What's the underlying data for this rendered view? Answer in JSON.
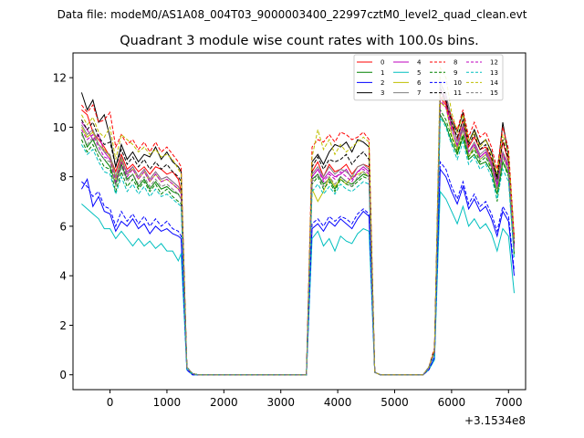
{
  "figure_header": "Data file: modeM0/AS1A08_004T03_9000003400_22997cztM0_level2_quad_clean.evt",
  "chart_data": {
    "type": "line",
    "title": "Quadrant 3 module wise count rates with 100.0s bins.",
    "xlabel": "",
    "ylabel": "",
    "x_offset_label": "+3.1534e8",
    "xlim": [
      -650,
      7300
    ],
    "ylim": [
      -0.6,
      13.0
    ],
    "x_ticks": [
      0,
      1000,
      2000,
      3000,
      4000,
      5000,
      6000,
      7000
    ],
    "y_ticks": [
      0,
      2,
      4,
      6,
      8,
      10,
      12
    ],
    "grid": false,
    "legend_placement": "top-right",
    "legend_columns": 4,
    "x": [
      -500,
      -400,
      -300,
      -200,
      -100,
      0,
      100,
      200,
      300,
      400,
      500,
      600,
      700,
      800,
      900,
      1000,
      1100,
      1200,
      1250,
      1350,
      1450,
      1550,
      2000,
      2500,
      3000,
      3450,
      3550,
      3650,
      3750,
      3850,
      3950,
      4050,
      4150,
      4250,
      4350,
      4450,
      4550,
      4650,
      4750,
      4850,
      5000,
      5500,
      5600,
      5700,
      5800,
      5900,
      6000,
      6100,
      6200,
      6300,
      6400,
      6500,
      6600,
      6700,
      6800,
      6900,
      7000,
      7100
    ],
    "series": [
      {
        "name": "0",
        "color": "#ff0000",
        "dash": "solid",
        "values": [
          10.7,
          10.5,
          9.8,
          9.5,
          9.2,
          8.8,
          8.2,
          8.9,
          8.3,
          8.5,
          8.2,
          8.4,
          8.1,
          8.4,
          8.3,
          8.1,
          8.2,
          7.9,
          7.4,
          0.3,
          0.05,
          0.0,
          0.0,
          0.0,
          0.0,
          0.0,
          8.2,
          8.6,
          8.0,
          8.5,
          8.2,
          8.3,
          8.5,
          8.1,
          8.4,
          8.5,
          8.4,
          0.1,
          0.0,
          0.0,
          0.0,
          0.0,
          0.3,
          1.0,
          11.2,
          10.9,
          10.1,
          9.5,
          10.3,
          9.2,
          9.6,
          9.1,
          9.2,
          8.7,
          7.9,
          9.4,
          8.6,
          5.2
        ]
      },
      {
        "name": "1",
        "color": "#008000",
        "dash": "solid",
        "values": [
          9.8,
          9.2,
          9.5,
          9.0,
          8.7,
          8.4,
          7.7,
          8.5,
          7.9,
          8.1,
          7.6,
          7.9,
          7.5,
          7.8,
          7.5,
          7.6,
          7.4,
          7.3,
          7.1,
          0.3,
          0.05,
          0.0,
          0.0,
          0.0,
          0.0,
          0.0,
          7.9,
          8.1,
          7.7,
          7.9,
          7.5,
          8.0,
          7.8,
          7.7,
          7.9,
          8.1,
          8.0,
          0.1,
          0.0,
          0.0,
          0.0,
          0.0,
          0.3,
          0.9,
          10.5,
          10.1,
          9.4,
          8.9,
          9.6,
          8.7,
          8.9,
          8.5,
          8.6,
          8.2,
          7.3,
          8.6,
          8.1,
          4.9
        ]
      },
      {
        "name": "2",
        "color": "#0000ff",
        "dash": "solid",
        "values": [
          7.5,
          7.9,
          6.8,
          7.2,
          6.6,
          6.5,
          5.8,
          6.2,
          6.0,
          6.3,
          5.9,
          6.1,
          5.7,
          6.0,
          5.8,
          5.9,
          5.7,
          5.6,
          5.5,
          0.2,
          0.0,
          0.0,
          0.0,
          0.0,
          0.0,
          0.0,
          5.9,
          6.1,
          5.8,
          6.2,
          6.0,
          6.3,
          6.1,
          5.9,
          6.3,
          6.6,
          6.4,
          0.1,
          0.0,
          0.0,
          0.0,
          0.0,
          0.2,
          0.7,
          8.3,
          8.0,
          7.4,
          6.9,
          7.6,
          6.7,
          7.1,
          6.6,
          6.8,
          6.3,
          5.6,
          6.6,
          6.2,
          4.0
        ]
      },
      {
        "name": "3",
        "color": "#000000",
        "dash": "solid",
        "values": [
          11.4,
          10.7,
          11.1,
          10.2,
          10.5,
          9.6,
          8.4,
          9.3,
          8.7,
          9.0,
          8.6,
          8.9,
          8.8,
          9.2,
          8.7,
          9.0,
          8.6,
          8.4,
          8.2,
          0.3,
          0.05,
          0.0,
          0.0,
          0.0,
          0.0,
          0.0,
          8.6,
          8.9,
          8.5,
          9.0,
          9.3,
          9.2,
          9.4,
          9.0,
          9.5,
          9.4,
          9.2,
          0.1,
          0.0,
          0.0,
          0.0,
          0.0,
          0.3,
          1.0,
          11.6,
          11.0,
          10.3,
          9.8,
          10.6,
          9.4,
          9.9,
          9.3,
          9.5,
          9.0,
          8.0,
          10.2,
          8.8,
          5.5
        ]
      },
      {
        "name": "4",
        "color": "#bf00bf",
        "dash": "solid",
        "values": [
          10.2,
          9.9,
          9.5,
          9.7,
          9.0,
          8.7,
          8.0,
          8.6,
          8.2,
          8.4,
          8.0,
          8.3,
          7.9,
          8.2,
          7.9,
          8.0,
          7.8,
          7.6,
          7.4,
          0.3,
          0.05,
          0.0,
          0.0,
          0.0,
          0.0,
          0.0,
          8.0,
          8.3,
          7.9,
          8.2,
          8.0,
          8.1,
          8.3,
          7.9,
          8.2,
          8.4,
          8.2,
          0.1,
          0.0,
          0.0,
          0.0,
          0.0,
          0.3,
          0.9,
          11.5,
          11.2,
          10.0,
          9.2,
          10.0,
          9.0,
          9.3,
          8.8,
          9.0,
          8.5,
          7.7,
          9.0,
          8.4,
          5.1
        ]
      },
      {
        "name": "5",
        "color": "#00bfbf",
        "dash": "solid",
        "values": [
          6.9,
          6.7,
          6.5,
          6.3,
          5.9,
          5.9,
          5.5,
          5.8,
          5.5,
          5.2,
          5.5,
          5.2,
          5.4,
          5.1,
          5.3,
          5.0,
          5.0,
          4.6,
          4.9,
          0.2,
          0.0,
          0.0,
          0.0,
          0.0,
          0.0,
          0.0,
          5.5,
          5.8,
          5.2,
          5.5,
          5.0,
          5.6,
          5.4,
          5.3,
          5.7,
          5.9,
          5.8,
          0.1,
          0.0,
          0.0,
          0.0,
          0.0,
          0.2,
          0.6,
          7.4,
          7.1,
          6.6,
          6.1,
          6.8,
          6.0,
          6.3,
          5.9,
          6.1,
          5.7,
          5.0,
          5.9,
          5.6,
          3.3
        ]
      },
      {
        "name": "6",
        "color": "#bfbf00",
        "dash": "solid",
        "values": [
          10.0,
          9.6,
          9.8,
          9.3,
          9.1,
          8.8,
          7.9,
          8.7,
          8.1,
          8.3,
          7.9,
          8.2,
          7.8,
          8.1,
          7.8,
          7.9,
          7.7,
          7.5,
          7.3,
          0.3,
          0.05,
          0.0,
          0.0,
          0.0,
          0.0,
          0.0,
          7.5,
          7.0,
          7.4,
          8.0,
          7.6,
          7.9,
          7.7,
          8.0,
          8.1,
          8.2,
          8.0,
          0.1,
          0.0,
          0.0,
          0.0,
          0.0,
          0.3,
          0.9,
          11.0,
          10.8,
          9.7,
          9.1,
          9.9,
          8.8,
          9.2,
          8.7,
          8.9,
          8.4,
          7.5,
          8.9,
          8.2,
          5.0
        ]
      },
      {
        "name": "7",
        "color": "#7f7f7f",
        "dash": "solid",
        "values": [
          10.1,
          9.7,
          9.9,
          9.3,
          9.0,
          8.9,
          8.0,
          8.8,
          8.1,
          8.4,
          8.0,
          8.3,
          7.9,
          8.2,
          7.9,
          8.0,
          7.8,
          7.6,
          7.4,
          0.3,
          0.05,
          0.0,
          0.0,
          0.0,
          0.0,
          0.0,
          8.1,
          8.4,
          8.0,
          8.4,
          8.1,
          8.3,
          8.2,
          8.0,
          8.4,
          8.5,
          8.3,
          0.1,
          0.0,
          0.0,
          0.0,
          0.0,
          0.3,
          0.9,
          11.8,
          11.3,
          10.4,
          9.4,
          10.1,
          9.0,
          9.4,
          8.9,
          9.1,
          8.6,
          7.8,
          9.0,
          8.5,
          5.1
        ]
      },
      {
        "name": "8",
        "color": "#ff0000",
        "dash": "dashed",
        "values": [
          10.9,
          10.6,
          10.9,
          10.2,
          10.3,
          10.6,
          9.2,
          9.7,
          9.3,
          9.5,
          9.1,
          9.4,
          9.0,
          9.4,
          9.0,
          9.2,
          8.9,
          8.6,
          8.4,
          0.3,
          0.05,
          0.0,
          0.0,
          0.0,
          0.0,
          0.0,
          9.2,
          9.5,
          9.4,
          9.7,
          9.4,
          9.8,
          9.7,
          9.5,
          9.6,
          9.8,
          9.5,
          0.1,
          0.0,
          0.0,
          0.0,
          0.0,
          0.3,
          1.1,
          11.3,
          11.0,
          10.4,
          9.9,
          10.7,
          9.6,
          10.2,
          9.6,
          9.8,
          9.2,
          8.3,
          10.0,
          9.1,
          5.6
        ]
      },
      {
        "name": "9",
        "color": "#008000",
        "dash": "dashed",
        "values": [
          9.5,
          9.0,
          9.3,
          8.8,
          8.4,
          8.3,
          7.4,
          8.2,
          7.6,
          7.9,
          7.5,
          7.8,
          7.4,
          7.7,
          7.3,
          7.5,
          7.2,
          7.0,
          6.9,
          0.3,
          0.05,
          0.0,
          0.0,
          0.0,
          0.0,
          0.0,
          7.7,
          8.0,
          7.5,
          7.8,
          7.4,
          7.9,
          7.7,
          7.6,
          7.8,
          8.0,
          7.9,
          0.1,
          0.0,
          0.0,
          0.0,
          0.0,
          0.3,
          0.9,
          10.7,
          10.3,
          9.6,
          9.0,
          9.7,
          8.8,
          9.1,
          8.6,
          8.8,
          8.3,
          7.0,
          8.6,
          8.0,
          4.8
        ]
      },
      {
        "name": "10",
        "color": "#0000ff",
        "dash": "dashed",
        "values": [
          7.8,
          7.6,
          7.2,
          7.4,
          6.8,
          6.7,
          6.0,
          6.6,
          6.2,
          6.5,
          6.1,
          6.4,
          6.0,
          6.3,
          6.0,
          6.2,
          5.9,
          5.8,
          5.6,
          0.2,
          0.0,
          0.0,
          0.0,
          0.0,
          0.0,
          0.0,
          6.1,
          6.3,
          6.0,
          6.4,
          6.2,
          6.4,
          6.3,
          6.1,
          6.5,
          6.7,
          6.5,
          0.1,
          0.0,
          0.0,
          0.0,
          0.0,
          0.2,
          0.7,
          8.6,
          8.3,
          7.6,
          7.1,
          7.8,
          6.9,
          7.3,
          6.8,
          7.0,
          6.5,
          5.8,
          6.8,
          6.4,
          4.2
        ]
      },
      {
        "name": "11",
        "color": "#000000",
        "dash": "dashed",
        "values": [
          10.3,
          9.9,
          10.2,
          9.6,
          9.3,
          9.4,
          8.4,
          9.1,
          8.5,
          8.8,
          8.4,
          8.7,
          8.3,
          8.6,
          8.3,
          8.5,
          8.2,
          8.0,
          7.8,
          0.3,
          0.05,
          0.0,
          0.0,
          0.0,
          0.0,
          0.0,
          8.4,
          8.8,
          8.3,
          8.7,
          8.6,
          8.7,
          8.9,
          8.5,
          8.8,
          9.0,
          8.7,
          0.1,
          0.0,
          0.0,
          0.0,
          0.0,
          0.3,
          1.0,
          11.4,
          11.1,
          10.2,
          9.6,
          10.3,
          9.3,
          9.7,
          9.1,
          9.3,
          8.8,
          7.9,
          9.5,
          8.7,
          5.3
        ]
      },
      {
        "name": "12",
        "color": "#bf00bf",
        "dash": "dashed",
        "values": [
          9.9,
          9.5,
          9.7,
          9.2,
          8.8,
          8.7,
          7.8,
          8.6,
          8.0,
          8.3,
          7.9,
          8.2,
          7.8,
          8.1,
          7.8,
          7.9,
          7.7,
          7.5,
          7.3,
          0.3,
          0.05,
          0.0,
          0.0,
          0.0,
          0.0,
          0.0,
          8.0,
          8.3,
          7.8,
          8.1,
          7.9,
          8.2,
          8.0,
          7.8,
          8.2,
          8.3,
          8.1,
          0.1,
          0.0,
          0.0,
          0.0,
          0.0,
          0.3,
          0.9,
          11.1,
          10.8,
          9.9,
          9.3,
          10.0,
          9.0,
          9.3,
          8.8,
          9.0,
          8.5,
          7.6,
          8.9,
          8.3,
          5.1
        ]
      },
      {
        "name": "13",
        "color": "#00bfbf",
        "dash": "dashed",
        "values": [
          9.3,
          8.9,
          9.1,
          8.6,
          8.2,
          8.1,
          7.3,
          8.0,
          7.4,
          7.7,
          7.3,
          7.6,
          7.2,
          7.5,
          7.2,
          7.3,
          7.1,
          6.9,
          6.8,
          0.3,
          0.05,
          0.0,
          0.0,
          0.0,
          0.0,
          0.0,
          7.4,
          7.7,
          7.3,
          7.6,
          7.3,
          7.7,
          7.5,
          7.4,
          7.6,
          7.8,
          7.7,
          0.1,
          0.0,
          0.0,
          0.0,
          0.0,
          0.3,
          0.8,
          10.4,
          10.0,
          9.3,
          8.7,
          9.4,
          8.5,
          8.8,
          8.3,
          8.5,
          8.0,
          7.1,
          8.3,
          7.8,
          4.7
        ]
      },
      {
        "name": "14",
        "color": "#bfbf00",
        "dash": "dashed",
        "values": [
          10.5,
          10.1,
          10.4,
          9.8,
          9.6,
          10.0,
          8.7,
          9.7,
          9.5,
          9.3,
          9.0,
          9.2,
          8.9,
          9.1,
          8.8,
          8.9,
          8.7,
          8.3,
          8.1,
          0.3,
          0.05,
          0.0,
          0.0,
          0.0,
          0.0,
          0.0,
          8.8,
          9.9,
          9.1,
          9.5,
          8.9,
          9.3,
          9.0,
          9.2,
          9.4,
          9.6,
          9.4,
          0.1,
          0.0,
          0.0,
          0.0,
          0.0,
          0.3,
          1.0,
          12.4,
          12.0,
          10.6,
          9.8,
          10.5,
          9.4,
          9.8,
          9.2,
          9.5,
          8.9,
          8.1,
          9.7,
          8.9,
          5.4
        ]
      },
      {
        "name": "15",
        "color": "#7f7f7f",
        "dash": "dashed",
        "values": [
          9.7,
          9.3,
          9.6,
          9.0,
          8.7,
          8.6,
          7.6,
          8.4,
          7.8,
          8.1,
          7.7,
          8.0,
          7.6,
          7.9,
          7.6,
          7.7,
          7.5,
          7.3,
          7.1,
          0.3,
          0.05,
          0.0,
          0.0,
          0.0,
          0.0,
          0.0,
          7.8,
          8.1,
          7.6,
          8.0,
          7.7,
          8.0,
          7.8,
          7.6,
          8.0,
          8.2,
          8.0,
          0.1,
          0.0,
          0.0,
          0.0,
          0.0,
          0.3,
          0.9,
          11.7,
          11.4,
          10.0,
          9.2,
          9.9,
          8.9,
          9.2,
          8.7,
          8.9,
          8.4,
          7.5,
          8.8,
          8.2,
          5.0
        ]
      }
    ]
  }
}
